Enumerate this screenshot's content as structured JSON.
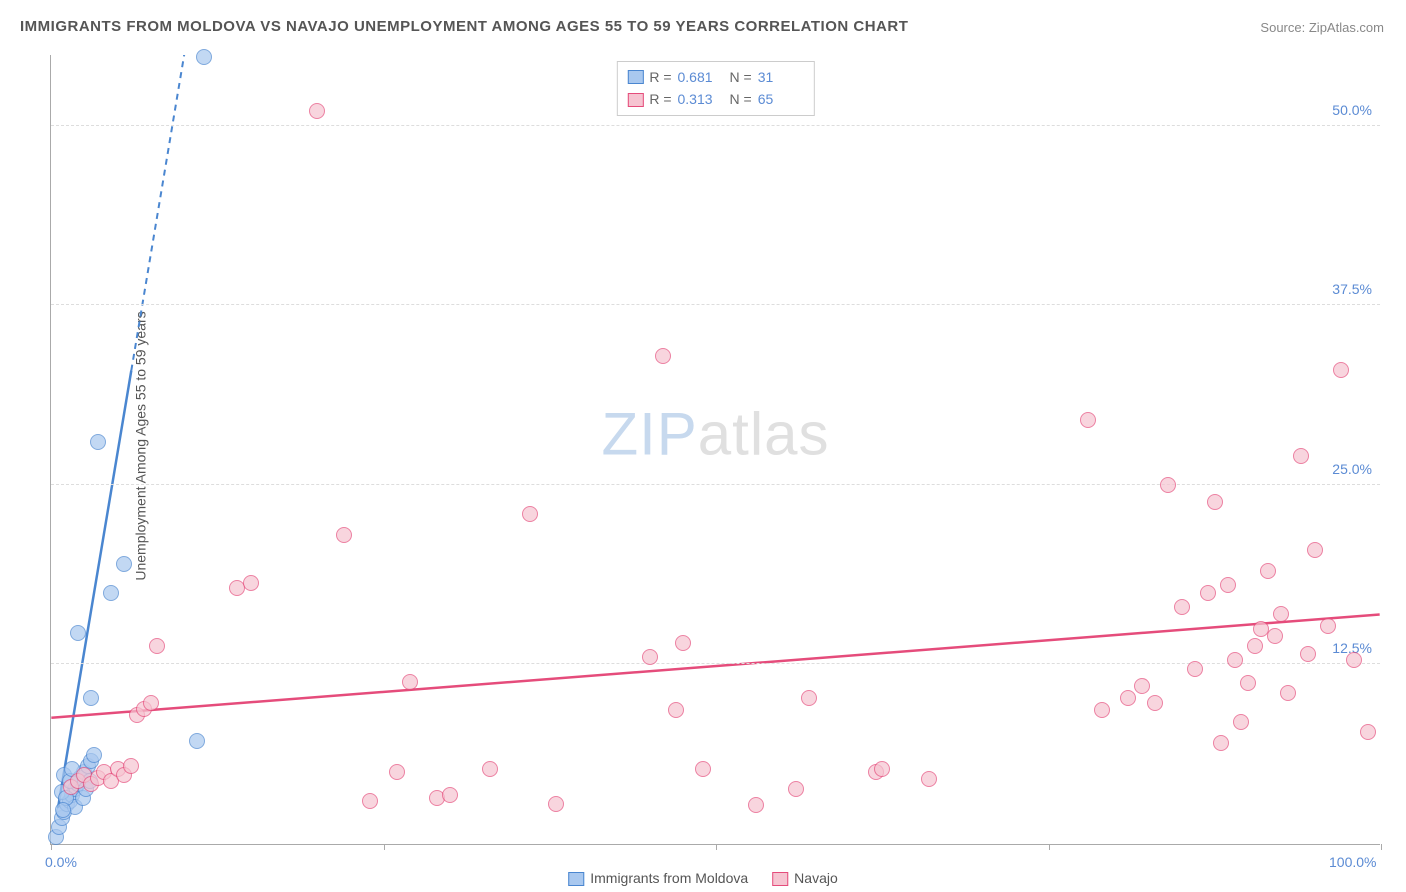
{
  "title": "IMMIGRANTS FROM MOLDOVA VS NAVAJO UNEMPLOYMENT AMONG AGES 55 TO 59 YEARS CORRELATION CHART",
  "source_label": "Source:",
  "source_site": "ZipAtlas.com",
  "ylabel": "Unemployment Among Ages 55 to 59 years",
  "watermark_a": "ZIP",
  "watermark_b": "atlas",
  "chart": {
    "type": "scatter",
    "background_color": "#ffffff",
    "grid_color": "#dddddd",
    "axis_color": "#aaaaaa",
    "tick_label_color": "#5b8bd4",
    "xlim": [
      0,
      100
    ],
    "ylim": [
      0,
      55
    ],
    "x_ticks": [
      0,
      25,
      50,
      75,
      100
    ],
    "x_tick_labels": [
      "0.0%",
      "",
      "",
      "",
      "100.0%"
    ],
    "y_ticks": [
      12.5,
      25.0,
      37.5,
      50.0
    ],
    "y_tick_labels": [
      "12.5%",
      "25.0%",
      "37.5%",
      "50.0%"
    ],
    "marker_radius": 8,
    "marker_opacity": 0.35,
    "series": [
      {
        "name": "Immigrants from Moldova",
        "color_fill": "#a9c8ef",
        "color_stroke": "#4a86d0",
        "R": "0.681",
        "N": "31",
        "trend": {
          "x1": 0.5,
          "y1": 2.5,
          "x2": 10,
          "y2": 55,
          "dash_after_y": 33
        },
        "points": [
          [
            0.4,
            0.5
          ],
          [
            0.6,
            1.2
          ],
          [
            0.8,
            1.8
          ],
          [
            1.0,
            2.2
          ],
          [
            1.2,
            2.8
          ],
          [
            1.4,
            3.0
          ],
          [
            1.6,
            3.4
          ],
          [
            1.8,
            3.8
          ],
          [
            2.0,
            4.2
          ],
          [
            2.2,
            4.6
          ],
          [
            2.5,
            5.0
          ],
          [
            2.8,
            5.4
          ],
          [
            3.0,
            5.8
          ],
          [
            3.2,
            6.2
          ],
          [
            3.0,
            10.2
          ],
          [
            2.0,
            14.7
          ],
          [
            4.5,
            17.5
          ],
          [
            5.5,
            19.5
          ],
          [
            3.5,
            28.0
          ],
          [
            11.5,
            54.8
          ],
          [
            11.0,
            7.2
          ],
          [
            1.0,
            4.8
          ],
          [
            0.8,
            3.6
          ],
          [
            1.4,
            4.4
          ],
          [
            1.8,
            2.6
          ],
          [
            2.4,
            3.2
          ],
          [
            2.6,
            3.8
          ],
          [
            2.9,
            4.4
          ],
          [
            1.1,
            3.2
          ],
          [
            0.9,
            2.4
          ],
          [
            1.6,
            5.2
          ]
        ]
      },
      {
        "name": "Navajo",
        "color_fill": "#f6c4d1",
        "color_stroke": "#e54c7b",
        "R": "0.313",
        "N": "65",
        "trend": {
          "x1": 0,
          "y1": 8.8,
          "x2": 100,
          "y2": 16.0
        },
        "points": [
          [
            1.5,
            4.0
          ],
          [
            2.0,
            4.4
          ],
          [
            2.5,
            4.8
          ],
          [
            3.0,
            4.2
          ],
          [
            3.5,
            4.6
          ],
          [
            4.0,
            5.0
          ],
          [
            4.5,
            4.4
          ],
          [
            5.0,
            5.2
          ],
          [
            5.5,
            4.8
          ],
          [
            6.0,
            5.4
          ],
          [
            6.5,
            9.0
          ],
          [
            7.0,
            9.4
          ],
          [
            7.5,
            9.8
          ],
          [
            8.0,
            13.8
          ],
          [
            14.0,
            17.8
          ],
          [
            15.0,
            18.2
          ],
          [
            20.0,
            51.0
          ],
          [
            22.0,
            21.5
          ],
          [
            24.0,
            3.0
          ],
          [
            26.0,
            5.0
          ],
          [
            27.0,
            11.3
          ],
          [
            29.0,
            3.2
          ],
          [
            30.0,
            3.4
          ],
          [
            33.0,
            5.2
          ],
          [
            36.0,
            23.0
          ],
          [
            38.0,
            2.8
          ],
          [
            45.0,
            13.0
          ],
          [
            46.0,
            34.0
          ],
          [
            47.0,
            9.3
          ],
          [
            47.5,
            14.0
          ],
          [
            49.0,
            5.2
          ],
          [
            53.0,
            2.7
          ],
          [
            56.0,
            3.8
          ],
          [
            57.0,
            10.2
          ],
          [
            62.0,
            5.0
          ],
          [
            62.5,
            5.2
          ],
          [
            66.0,
            4.5
          ],
          [
            78.0,
            29.5
          ],
          [
            79.0,
            9.3
          ],
          [
            81.0,
            10.2
          ],
          [
            82.0,
            11.0
          ],
          [
            83.0,
            9.8
          ],
          [
            84.0,
            25.0
          ],
          [
            85.0,
            16.5
          ],
          [
            86.0,
            12.2
          ],
          [
            87.0,
            17.5
          ],
          [
            87.5,
            23.8
          ],
          [
            88.0,
            7.0
          ],
          [
            88.5,
            18.0
          ],
          [
            89.0,
            12.8
          ],
          [
            89.5,
            8.5
          ],
          [
            90.0,
            11.2
          ],
          [
            90.5,
            13.8
          ],
          [
            91.0,
            15.0
          ],
          [
            91.5,
            19.0
          ],
          [
            92.0,
            14.5
          ],
          [
            92.5,
            16.0
          ],
          [
            93.0,
            10.5
          ],
          [
            94.0,
            27.0
          ],
          [
            94.5,
            13.2
          ],
          [
            95.0,
            20.5
          ],
          [
            96.0,
            15.2
          ],
          [
            97.0,
            33.0
          ],
          [
            98.0,
            12.8
          ],
          [
            99.0,
            7.8
          ]
        ]
      }
    ]
  },
  "legend_top": {
    "r_label": "R =",
    "n_label": "N ="
  }
}
